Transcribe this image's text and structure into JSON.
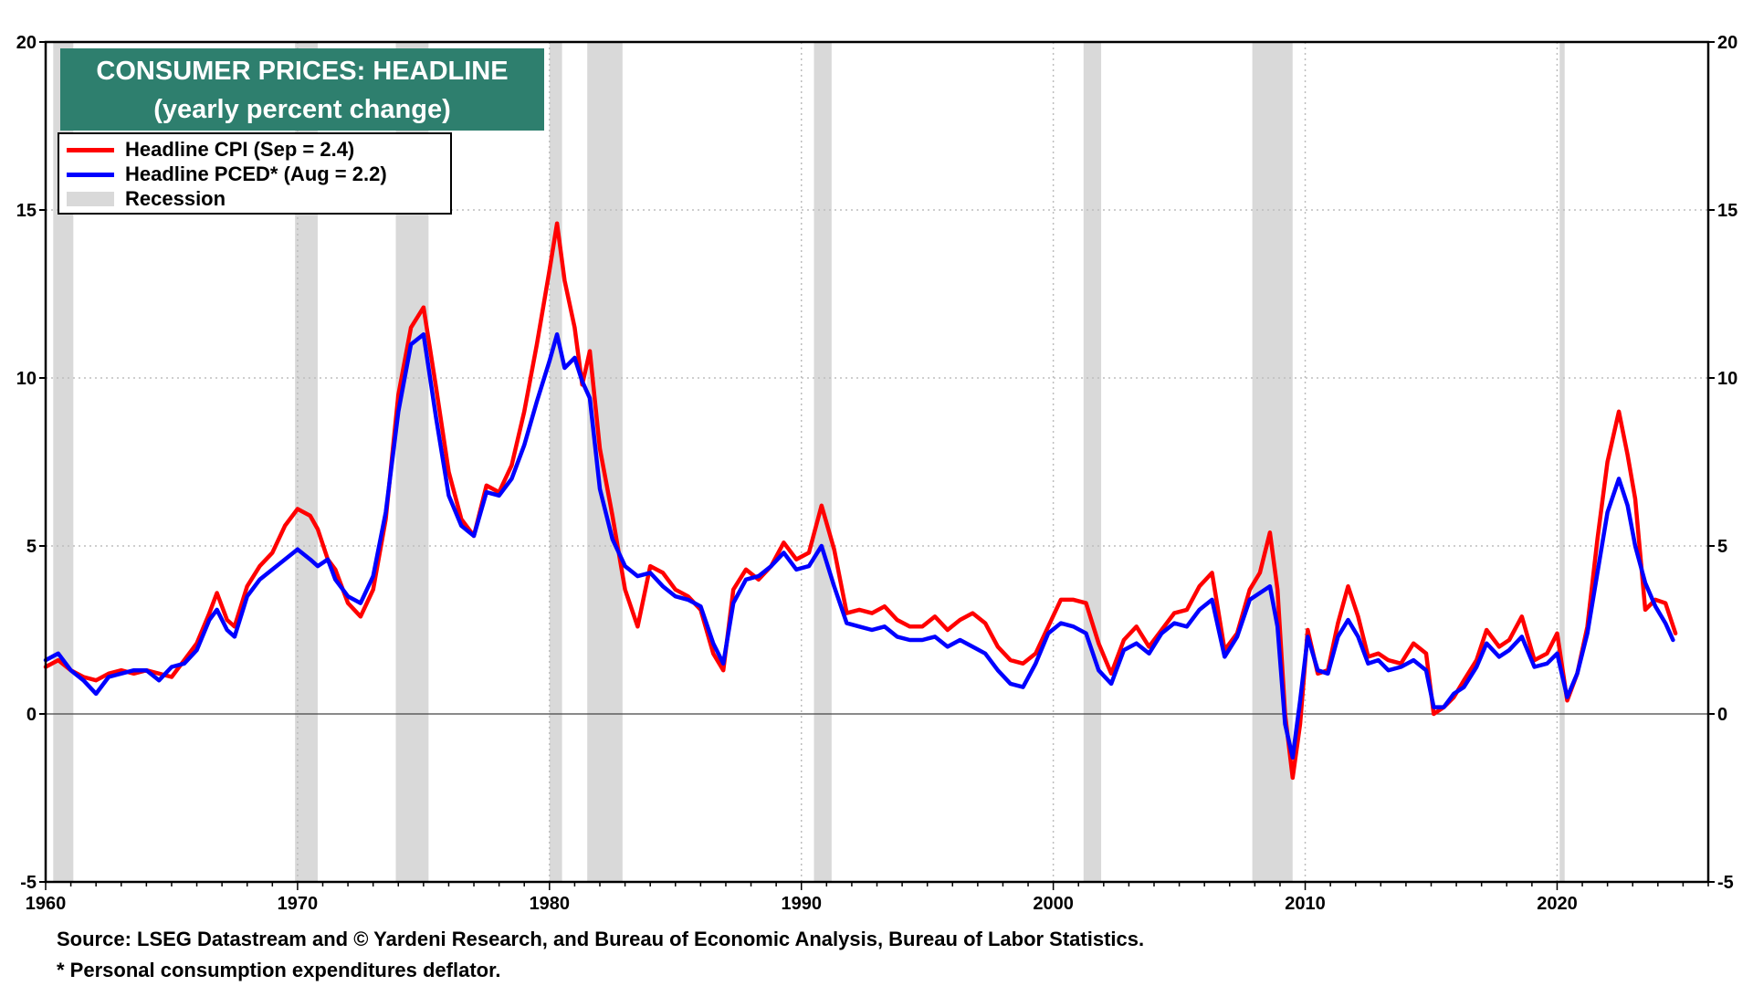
{
  "chart_data": {
    "type": "line",
    "title": "CONSUMER PRICES: HEADLINE",
    "subtitle": "(yearly percent change)",
    "xlim": [
      1960,
      2026
    ],
    "ylim": [
      -5,
      20
    ],
    "x_ticks": [
      1960,
      1970,
      1980,
      1990,
      2000,
      2010,
      2020
    ],
    "y_ticks": [
      -5,
      0,
      5,
      10,
      15,
      20
    ],
    "grid": true,
    "legend_position": "top-left",
    "legend": [
      {
        "label": "Headline CPI (Sep = 2.4)",
        "kind": "line",
        "color": "#ff0000"
      },
      {
        "label": "Headline PCED* (Aug = 2.2)",
        "kind": "line",
        "color": "#0000ff"
      },
      {
        "label": "Recession",
        "kind": "block",
        "color": "#d9d9d9"
      }
    ],
    "recessions": [
      [
        1960.3,
        1961.1
      ],
      [
        1969.9,
        1970.8
      ],
      [
        1973.9,
        1975.2
      ],
      [
        1980.0,
        1980.5
      ],
      [
        1981.5,
        1982.9
      ],
      [
        1990.5,
        1991.2
      ],
      [
        2001.2,
        2001.9
      ],
      [
        2007.9,
        2009.5
      ],
      [
        2020.1,
        2020.3
      ]
    ],
    "series": [
      {
        "name": "Headline CPI",
        "color": "#ff0000",
        "x": [
          1960.0,
          1960.5,
          1961.0,
          1961.5,
          1962.0,
          1962.5,
          1963.0,
          1963.5,
          1964.0,
          1964.5,
          1965.0,
          1965.5,
          1966.0,
          1966.5,
          1966.8,
          1967.2,
          1967.5,
          1968.0,
          1968.5,
          1969.0,
          1969.5,
          1970.0,
          1970.5,
          1970.8,
          1971.2,
          1971.5,
          1972.0,
          1972.5,
          1973.0,
          1973.5,
          1974.0,
          1974.5,
          1975.0,
          1975.5,
          1976.0,
          1976.5,
          1977.0,
          1977.5,
          1978.0,
          1978.5,
          1979.0,
          1979.5,
          1980.0,
          1980.3,
          1980.6,
          1981.0,
          1981.3,
          1981.6,
          1982.0,
          1982.5,
          1983.0,
          1983.5,
          1984.0,
          1984.5,
          1985.0,
          1985.5,
          1986.0,
          1986.5,
          1986.9,
          1987.3,
          1987.8,
          1988.3,
          1988.8,
          1989.3,
          1989.8,
          1990.3,
          1990.8,
          1991.3,
          1991.8,
          1992.3,
          1992.8,
          1993.3,
          1993.8,
          1994.3,
          1994.8,
          1995.3,
          1995.8,
          1996.3,
          1996.8,
          1997.3,
          1997.8,
          1998.3,
          1998.8,
          1999.3,
          1999.8,
          2000.3,
          2000.8,
          2001.3,
          2001.8,
          2002.3,
          2002.8,
          2003.3,
          2003.8,
          2004.3,
          2004.8,
          2005.3,
          2005.8,
          2006.3,
          2006.8,
          2007.3,
          2007.8,
          2008.2,
          2008.6,
          2008.9,
          2009.2,
          2009.5,
          2009.8,
          2010.1,
          2010.5,
          2010.9,
          2011.3,
          2011.7,
          2012.1,
          2012.5,
          2012.9,
          2013.3,
          2013.8,
          2014.3,
          2014.8,
          2015.1,
          2015.5,
          2015.9,
          2016.3,
          2016.8,
          2017.2,
          2017.7,
          2018.1,
          2018.6,
          2019.1,
          2019.6,
          2020.0,
          2020.4,
          2020.8,
          2021.2,
          2021.6,
          2022.0,
          2022.45,
          2022.8,
          2023.1,
          2023.5,
          2023.9,
          2024.3,
          2024.7
        ],
        "y": [
          1.4,
          1.6,
          1.3,
          1.1,
          1.0,
          1.2,
          1.3,
          1.2,
          1.3,
          1.2,
          1.1,
          1.6,
          2.1,
          3.0,
          3.6,
          2.8,
          2.6,
          3.8,
          4.4,
          4.8,
          5.6,
          6.1,
          5.9,
          5.5,
          4.6,
          4.3,
          3.3,
          2.9,
          3.7,
          5.8,
          9.5,
          11.5,
          12.1,
          9.7,
          7.2,
          5.8,
          5.3,
          6.8,
          6.6,
          7.4,
          9.0,
          11.0,
          13.2,
          14.6,
          12.9,
          11.5,
          9.8,
          10.8,
          7.9,
          5.9,
          3.7,
          2.6,
          4.4,
          4.2,
          3.7,
          3.5,
          3.1,
          1.8,
          1.3,
          3.7,
          4.3,
          4.0,
          4.4,
          5.1,
          4.6,
          4.8,
          6.2,
          4.9,
          3.0,
          3.1,
          3.0,
          3.2,
          2.8,
          2.6,
          2.6,
          2.9,
          2.5,
          2.8,
          3.0,
          2.7,
          2.0,
          1.6,
          1.5,
          1.8,
          2.6,
          3.4,
          3.4,
          3.3,
          2.1,
          1.2,
          2.2,
          2.6,
          2.0,
          2.5,
          3.0,
          3.1,
          3.8,
          4.2,
          1.9,
          2.4,
          3.7,
          4.2,
          5.4,
          3.7,
          0.0,
          -1.9,
          -0.3,
          2.5,
          1.2,
          1.3,
          2.7,
          3.8,
          2.9,
          1.7,
          1.8,
          1.6,
          1.5,
          2.1,
          1.8,
          0.0,
          0.2,
          0.5,
          1.0,
          1.6,
          2.5,
          2.0,
          2.2,
          2.9,
          1.6,
          1.8,
          2.4,
          0.4,
          1.2,
          2.6,
          5.2,
          7.5,
          9.0,
          7.7,
          6.4,
          3.1,
          3.4,
          3.3,
          2.4
        ]
      },
      {
        "name": "Headline PCED*",
        "color": "#0000ff",
        "x": [
          1960.0,
          1960.5,
          1961.0,
          1961.5,
          1962.0,
          1962.5,
          1963.0,
          1963.5,
          1964.0,
          1964.5,
          1965.0,
          1965.5,
          1966.0,
          1966.5,
          1966.8,
          1967.2,
          1967.5,
          1968.0,
          1968.5,
          1969.0,
          1969.5,
          1970.0,
          1970.5,
          1970.8,
          1971.2,
          1971.5,
          1972.0,
          1972.5,
          1973.0,
          1973.5,
          1974.0,
          1974.5,
          1975.0,
          1975.5,
          1976.0,
          1976.5,
          1977.0,
          1977.5,
          1978.0,
          1978.5,
          1979.0,
          1979.5,
          1980.0,
          1980.3,
          1980.6,
          1981.0,
          1981.3,
          1981.6,
          1982.0,
          1982.5,
          1983.0,
          1983.5,
          1984.0,
          1984.5,
          1985.0,
          1985.5,
          1986.0,
          1986.5,
          1986.9,
          1987.3,
          1987.8,
          1988.3,
          1988.8,
          1989.3,
          1989.8,
          1990.3,
          1990.8,
          1991.3,
          1991.8,
          1992.3,
          1992.8,
          1993.3,
          1993.8,
          1994.3,
          1994.8,
          1995.3,
          1995.8,
          1996.3,
          1996.8,
          1997.3,
          1997.8,
          1998.3,
          1998.8,
          1999.3,
          1999.8,
          2000.3,
          2000.8,
          2001.3,
          2001.8,
          2002.3,
          2002.8,
          2003.3,
          2003.8,
          2004.3,
          2004.8,
          2005.3,
          2005.8,
          2006.3,
          2006.8,
          2007.3,
          2007.8,
          2008.2,
          2008.6,
          2008.9,
          2009.2,
          2009.5,
          2009.8,
          2010.1,
          2010.5,
          2010.9,
          2011.3,
          2011.7,
          2012.1,
          2012.5,
          2012.9,
          2013.3,
          2013.8,
          2014.3,
          2014.8,
          2015.1,
          2015.5,
          2015.9,
          2016.3,
          2016.8,
          2017.2,
          2017.7,
          2018.1,
          2018.6,
          2019.1,
          2019.6,
          2020.0,
          2020.4,
          2020.8,
          2021.2,
          2021.6,
          2022.0,
          2022.45,
          2022.8,
          2023.1,
          2023.5,
          2023.9,
          2024.3,
          2024.6
        ],
        "y": [
          1.6,
          1.8,
          1.3,
          1.0,
          0.6,
          1.1,
          1.2,
          1.3,
          1.3,
          1.0,
          1.4,
          1.5,
          1.9,
          2.8,
          3.1,
          2.5,
          2.3,
          3.5,
          4.0,
          4.3,
          4.6,
          4.9,
          4.6,
          4.4,
          4.6,
          4.0,
          3.5,
          3.3,
          4.1,
          6.0,
          9.0,
          11.0,
          11.3,
          8.8,
          6.5,
          5.6,
          5.3,
          6.6,
          6.5,
          7.0,
          8.0,
          9.3,
          10.5,
          11.3,
          10.3,
          10.6,
          9.9,
          9.4,
          6.7,
          5.2,
          4.4,
          4.1,
          4.2,
          3.8,
          3.5,
          3.4,
          3.2,
          2.1,
          1.5,
          3.3,
          4.0,
          4.1,
          4.4,
          4.8,
          4.3,
          4.4,
          5.0,
          3.8,
          2.7,
          2.6,
          2.5,
          2.6,
          2.3,
          2.2,
          2.2,
          2.3,
          2.0,
          2.2,
          2.0,
          1.8,
          1.3,
          0.9,
          0.8,
          1.5,
          2.4,
          2.7,
          2.6,
          2.4,
          1.3,
          0.9,
          1.9,
          2.1,
          1.8,
          2.4,
          2.7,
          2.6,
          3.1,
          3.4,
          1.7,
          2.3,
          3.4,
          3.6,
          3.8,
          2.6,
          -0.3,
          -1.3,
          0.4,
          2.3,
          1.3,
          1.2,
          2.3,
          2.8,
          2.3,
          1.5,
          1.6,
          1.3,
          1.4,
          1.6,
          1.3,
          0.2,
          0.2,
          0.6,
          0.8,
          1.4,
          2.1,
          1.7,
          1.9,
          2.3,
          1.4,
          1.5,
          1.8,
          0.5,
          1.2,
          2.4,
          4.2,
          6.0,
          7.0,
          6.2,
          5.0,
          3.9,
          3.2,
          2.7,
          2.2
        ]
      }
    ]
  },
  "source_note": "Source: LSEG Datastream and © Yardeni Research, and Bureau of Economic Analysis, Bureau of Labor Statistics.",
  "footnote": "* Personal consumption expenditures deflator."
}
